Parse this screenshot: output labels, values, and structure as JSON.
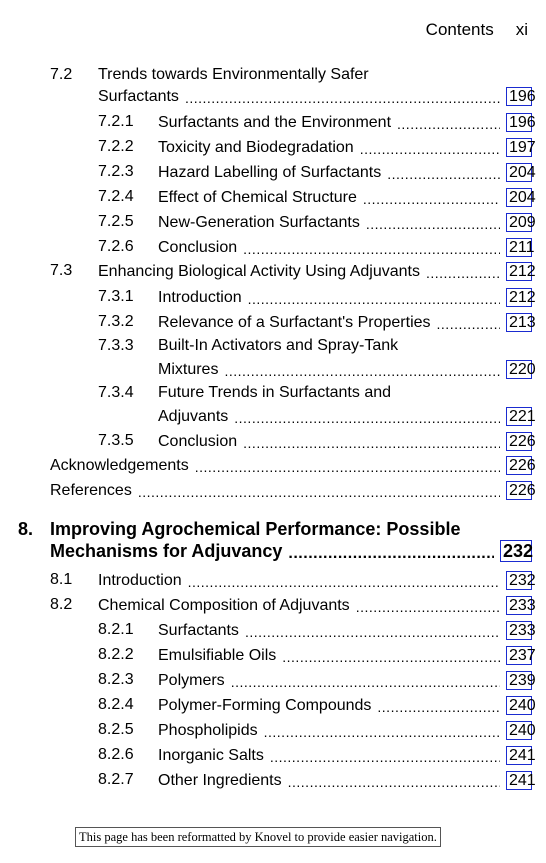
{
  "header": {
    "section": "Contents",
    "page": "xi"
  },
  "entries": [
    {
      "num": "7.2",
      "title1": "Trends towards Environmentally Safer",
      "title2": "Surfactants",
      "page": "196",
      "level": 1
    },
    {
      "num": "7.2.1",
      "title": "Surfactants and the Environment",
      "page": "196",
      "level": 2
    },
    {
      "num": "7.2.2",
      "title": "Toxicity and Biodegradation",
      "page": "197",
      "level": 2
    },
    {
      "num": "7.2.3",
      "title": "Hazard Labelling of Surfactants",
      "page": "204",
      "level": 2
    },
    {
      "num": "7.2.4",
      "title": "Effect of Chemical Structure",
      "page": "204",
      "level": 2
    },
    {
      "num": "7.2.5",
      "title": "New-Generation Surfactants",
      "page": "209",
      "level": 2
    },
    {
      "num": "7.2.6",
      "title": "Conclusion",
      "page": "211",
      "level": 2
    },
    {
      "num": "7.3",
      "title": "Enhancing Biological Activity Using Adjuvants",
      "page": "212",
      "level": 1
    },
    {
      "num": "7.3.1",
      "title": "Introduction",
      "page": "212",
      "level": 2
    },
    {
      "num": "7.3.2",
      "title": "Relevance of a Surfactant's Properties",
      "page": "213",
      "level": 2
    },
    {
      "num": "7.3.3",
      "title1": "Built-In Activators and Spray-Tank",
      "title2": "Mixtures",
      "page": "220",
      "level": 2
    },
    {
      "num": "7.3.4",
      "title1": "Future Trends in Surfactants and",
      "title2": "Adjuvants",
      "page": "221",
      "level": 2
    },
    {
      "num": "7.3.5",
      "title": "Conclusion",
      "page": "226",
      "level": 2
    },
    {
      "title": "Acknowledgements",
      "page": "226",
      "level": 0
    },
    {
      "title": "References",
      "page": "226",
      "level": 0
    }
  ],
  "chapter": {
    "num": "8.",
    "title1": "Improving Agrochemical Performance: Possible",
    "title2": "Mechanisms for Adjuvancy",
    "page": "232"
  },
  "entries2": [
    {
      "num": "8.1",
      "title": "Introduction",
      "page": "232",
      "level": 1
    },
    {
      "num": "8.2",
      "title": "Chemical Composition of Adjuvants",
      "page": "233",
      "level": 1
    },
    {
      "num": "8.2.1",
      "title": "Surfactants",
      "page": "233",
      "level": 2
    },
    {
      "num": "8.2.2",
      "title": "Emulsifiable Oils",
      "page": "237",
      "level": 2
    },
    {
      "num": "8.2.3",
      "title": "Polymers",
      "page": "239",
      "level": 2
    },
    {
      "num": "8.2.4",
      "title": "Polymer-Forming Compounds",
      "page": "240",
      "level": 2
    },
    {
      "num": "8.2.5",
      "title": "Phospholipids",
      "page": "240",
      "level": 2
    },
    {
      "num": "8.2.6",
      "title": "Inorganic Salts",
      "page": "241",
      "level": 2
    },
    {
      "num": "8.2.7",
      "title": "Other Ingredients",
      "page": "241",
      "level": 2
    }
  ],
  "footer": {
    "note": "This page has been reformatted by Knovel to provide easier navigation."
  },
  "colors": {
    "link_border": "#1a2bd0",
    "text": "#000000"
  }
}
